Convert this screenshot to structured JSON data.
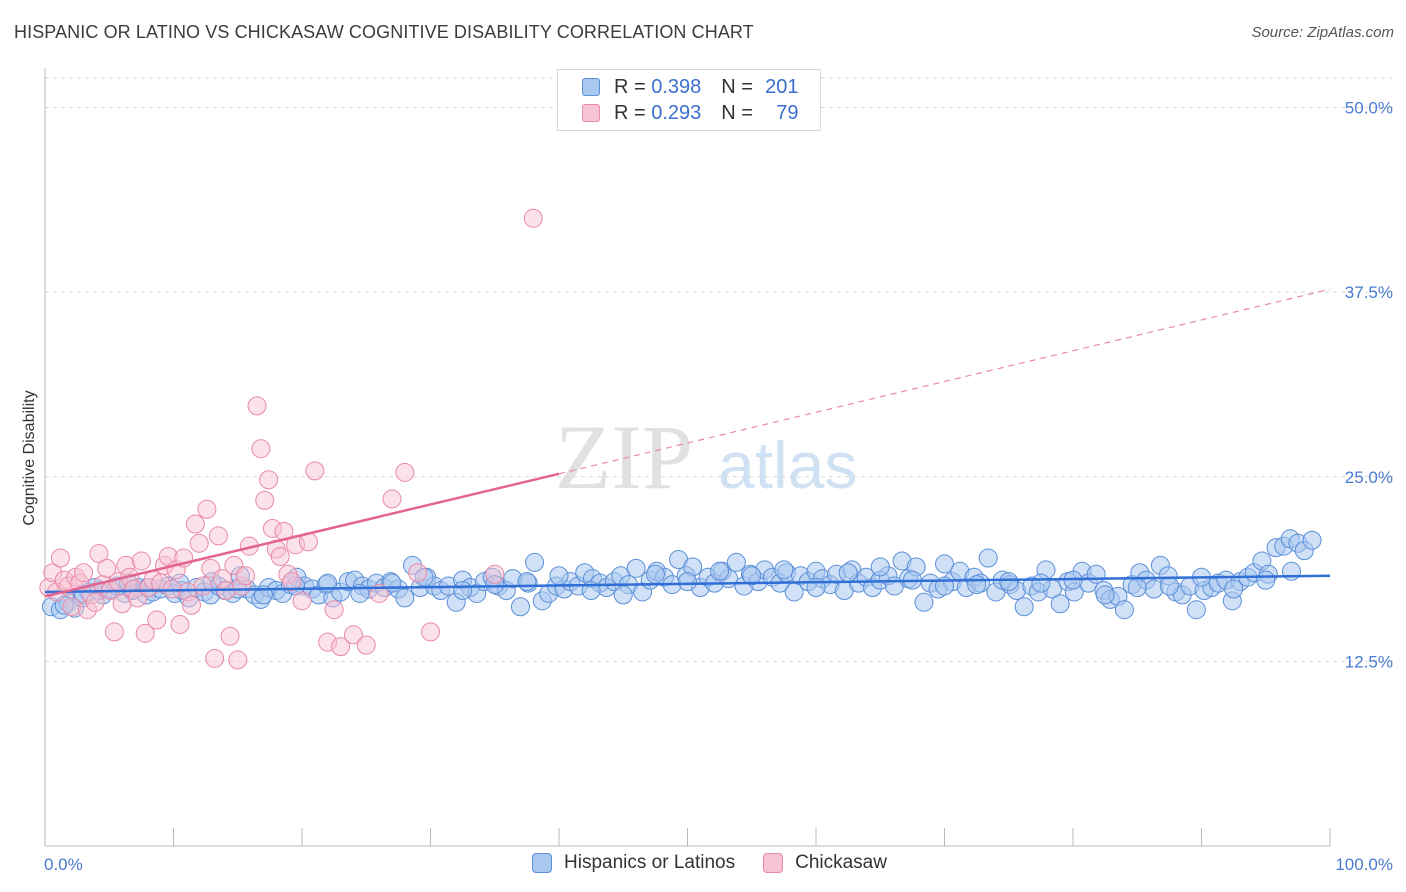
{
  "title": "HISPANIC OR LATINO VS CHICKASAW COGNITIVE DISABILITY CORRELATION CHART",
  "source": "Source: ZipAtlas.com",
  "legend": {
    "r_label": "R =",
    "n_label": "N =",
    "series": [
      {
        "name": "Hispanics or Latinos",
        "r": "0.398",
        "n": "201"
      },
      {
        "name": "Chickasaw",
        "r": "0.293",
        "n": "79"
      }
    ]
  },
  "watermark": {
    "zip": "ZIP",
    "atlas": "atlas"
  },
  "colors": {
    "blue_fill": "#a9c8f0",
    "blue_stroke": "#5b8fd8",
    "blue_line": "#2f6fd6",
    "pink_fill": "#f7c4d4",
    "pink_stroke": "#e98aa8",
    "pink_line": "#e36491",
    "grid": "#d8d8d8",
    "label_blue": "#4a7bd0"
  },
  "chart_data": {
    "type": "scatter",
    "title": "HISPANIC OR LATINO VS CHICKASAW COGNITIVE DISABILITY CORRELATION CHART",
    "xlabel": "",
    "ylabel": "Cognitive Disability",
    "xlim": [
      0,
      100
    ],
    "ylim": [
      0,
      52
    ],
    "x_tick_labels": [
      "0.0%",
      "100.0%"
    ],
    "y_ticks": [
      12.5,
      25.0,
      37.5,
      50.0
    ],
    "y_tick_labels": [
      "12.5%",
      "25.0%",
      "37.5%",
      "50.0%"
    ],
    "series": [
      {
        "name": "Hispanics or Latinos",
        "r": 0.398,
        "n": 201,
        "trend": {
          "x0": 0,
          "y0": 17.2,
          "x1": 100,
          "y1": 18.3,
          "style": "solid"
        },
        "points": [
          [
            0.5,
            16.2
          ],
          [
            1.2,
            16.0
          ],
          [
            1.8,
            16.5
          ],
          [
            2.3,
            16.1
          ],
          [
            2.9,
            16.8
          ],
          [
            3.4,
            17.2
          ],
          [
            3.9,
            17.5
          ],
          [
            4.5,
            17.0
          ],
          [
            5.1,
            17.4
          ],
          [
            5.6,
            17.6
          ],
          [
            6.2,
            17.1
          ],
          [
            6.8,
            17.3
          ],
          [
            7.3,
            17.5
          ],
          [
            7.9,
            17.0
          ],
          [
            8.4,
            17.2
          ],
          [
            9.0,
            17.4
          ],
          [
            9.6,
            17.6
          ],
          [
            10.1,
            17.1
          ],
          [
            10.7,
            17.3
          ],
          [
            11.2,
            16.8
          ],
          [
            11.8,
            17.5
          ],
          [
            12.4,
            17.2
          ],
          [
            12.9,
            17.0
          ],
          [
            13.5,
            17.6
          ],
          [
            14.0,
            17.3
          ],
          [
            14.6,
            17.1
          ],
          [
            15.2,
            18.3
          ],
          [
            15.7,
            17.4
          ],
          [
            16.3,
            17.0
          ],
          [
            16.8,
            16.7
          ],
          [
            17.4,
            17.5
          ],
          [
            18.0,
            17.3
          ],
          [
            18.5,
            17.1
          ],
          [
            19.1,
            17.7
          ],
          [
            19.6,
            18.2
          ],
          [
            20.2,
            17.6
          ],
          [
            20.8,
            17.4
          ],
          [
            21.3,
            17.0
          ],
          [
            21.9,
            17.7
          ],
          [
            22.4,
            16.8
          ],
          [
            23.0,
            17.2
          ],
          [
            23.6,
            17.9
          ],
          [
            24.1,
            18.0
          ],
          [
            24.7,
            17.6
          ],
          [
            25.2,
            17.4
          ],
          [
            25.8,
            17.8
          ],
          [
            26.4,
            17.5
          ],
          [
            26.9,
            17.9
          ],
          [
            27.5,
            17.4
          ],
          [
            28.0,
            16.8
          ],
          [
            28.6,
            19.0
          ],
          [
            29.2,
            17.5
          ],
          [
            29.7,
            18.2
          ],
          [
            30.3,
            17.6
          ],
          [
            30.8,
            17.3
          ],
          [
            31.4,
            17.6
          ],
          [
            32.0,
            16.5
          ],
          [
            32.5,
            18.0
          ],
          [
            33.1,
            17.5
          ],
          [
            33.6,
            17.1
          ],
          [
            34.2,
            17.9
          ],
          [
            34.8,
            18.2
          ],
          [
            35.3,
            17.6
          ],
          [
            35.9,
            17.3
          ],
          [
            36.4,
            18.1
          ],
          [
            37.0,
            16.2
          ],
          [
            37.6,
            17.8
          ],
          [
            38.1,
            19.2
          ],
          [
            38.7,
            16.6
          ],
          [
            39.2,
            17.1
          ],
          [
            39.8,
            17.6
          ],
          [
            40.4,
            17.4
          ],
          [
            40.9,
            17.9
          ],
          [
            41.5,
            17.6
          ],
          [
            42.0,
            18.5
          ],
          [
            42.6,
            18.1
          ],
          [
            43.2,
            17.8
          ],
          [
            43.7,
            17.5
          ],
          [
            44.3,
            17.9
          ],
          [
            44.8,
            18.3
          ],
          [
            45.4,
            17.7
          ],
          [
            46.0,
            18.8
          ],
          [
            46.5,
            17.2
          ],
          [
            47.1,
            18.0
          ],
          [
            47.6,
            18.6
          ],
          [
            48.2,
            18.2
          ],
          [
            48.8,
            17.7
          ],
          [
            49.3,
            19.4
          ],
          [
            49.9,
            18.3
          ],
          [
            50.4,
            18.9
          ],
          [
            51.0,
            17.5
          ],
          [
            51.6,
            18.2
          ],
          [
            52.1,
            17.8
          ],
          [
            52.7,
            18.6
          ],
          [
            53.2,
            18.1
          ],
          [
            53.8,
            19.2
          ],
          [
            54.4,
            17.6
          ],
          [
            54.9,
            18.4
          ],
          [
            55.5,
            17.9
          ],
          [
            56.0,
            18.7
          ],
          [
            56.6,
            18.2
          ],
          [
            57.2,
            17.8
          ],
          [
            57.7,
            18.5
          ],
          [
            58.3,
            17.2
          ],
          [
            58.8,
            18.3
          ],
          [
            59.4,
            17.9
          ],
          [
            60.0,
            18.6
          ],
          [
            60.5,
            18.1
          ],
          [
            61.1,
            17.7
          ],
          [
            61.6,
            18.4
          ],
          [
            62.2,
            17.3
          ],
          [
            62.8,
            18.7
          ],
          [
            63.3,
            17.8
          ],
          [
            63.9,
            18.2
          ],
          [
            64.4,
            17.5
          ],
          [
            65.0,
            18.0
          ],
          [
            65.6,
            18.3
          ],
          [
            66.1,
            17.6
          ],
          [
            66.7,
            19.3
          ],
          [
            67.2,
            18.1
          ],
          [
            67.8,
            18.9
          ],
          [
            68.4,
            16.5
          ],
          [
            68.9,
            17.8
          ],
          [
            69.5,
            17.4
          ],
          [
            70.0,
            19.1
          ],
          [
            70.6,
            17.9
          ],
          [
            71.2,
            18.6
          ],
          [
            71.7,
            17.5
          ],
          [
            72.3,
            18.2
          ],
          [
            72.8,
            17.8
          ],
          [
            73.4,
            19.5
          ],
          [
            74.0,
            17.2
          ],
          [
            74.5,
            18.0
          ],
          [
            75.1,
            17.7
          ],
          [
            75.6,
            17.3
          ],
          [
            76.2,
            16.2
          ],
          [
            76.8,
            17.6
          ],
          [
            77.3,
            17.2
          ],
          [
            77.9,
            18.7
          ],
          [
            78.4,
            17.4
          ],
          [
            79.0,
            16.4
          ],
          [
            79.6,
            17.9
          ],
          [
            80.1,
            17.2
          ],
          [
            80.7,
            18.6
          ],
          [
            81.2,
            17.8
          ],
          [
            81.8,
            18.4
          ],
          [
            82.4,
            17.3
          ],
          [
            82.9,
            16.7
          ],
          [
            83.5,
            16.9
          ],
          [
            84.0,
            16.0
          ],
          [
            84.6,
            17.7
          ],
          [
            85.2,
            18.5
          ],
          [
            85.7,
            18.0
          ],
          [
            86.3,
            17.4
          ],
          [
            86.8,
            19.0
          ],
          [
            87.4,
            18.3
          ],
          [
            88.0,
            17.2
          ],
          [
            88.5,
            17.0
          ],
          [
            89.1,
            17.6
          ],
          [
            89.6,
            16.0
          ],
          [
            90.2,
            17.3
          ],
          [
            90.8,
            17.5
          ],
          [
            91.3,
            17.8
          ],
          [
            91.9,
            18.0
          ],
          [
            92.4,
            16.6
          ],
          [
            93.0,
            17.9
          ],
          [
            93.6,
            18.2
          ],
          [
            94.1,
            18.5
          ],
          [
            94.7,
            19.3
          ],
          [
            95.2,
            18.4
          ],
          [
            95.8,
            20.2
          ],
          [
            96.4,
            20.3
          ],
          [
            96.9,
            20.8
          ],
          [
            97.5,
            20.5
          ],
          [
            98.0,
            20.0
          ],
          [
            98.6,
            20.7
          ],
          [
            1.5,
            16.3
          ],
          [
            3.0,
            17.0
          ],
          [
            4.2,
            17.3
          ],
          [
            6.5,
            17.8
          ],
          [
            8.0,
            17.5
          ],
          [
            10.5,
            17.8
          ],
          [
            13.0,
            17.9
          ],
          [
            15.0,
            17.4
          ],
          [
            17.0,
            17.0
          ],
          [
            19.5,
            17.6
          ],
          [
            22.0,
            17.8
          ],
          [
            24.5,
            17.1
          ],
          [
            27.0,
            17.8
          ],
          [
            29.5,
            18.2
          ],
          [
            32.5,
            17.3
          ],
          [
            35.0,
            17.7
          ],
          [
            37.5,
            17.9
          ],
          [
            40.0,
            18.3
          ],
          [
            42.5,
            17.3
          ],
          [
            45.0,
            17.0
          ],
          [
            47.5,
            18.4
          ],
          [
            50.0,
            17.9
          ],
          [
            52.5,
            18.6
          ],
          [
            55.0,
            18.3
          ],
          [
            57.5,
            18.7
          ],
          [
            60.0,
            17.5
          ],
          [
            62.5,
            18.5
          ],
          [
            65.0,
            18.9
          ],
          [
            67.5,
            18.0
          ],
          [
            70.0,
            17.6
          ],
          [
            72.5,
            17.7
          ],
          [
            75.0,
            17.9
          ],
          [
            77.5,
            17.8
          ],
          [
            80.0,
            18.0
          ],
          [
            82.5,
            17.0
          ],
          [
            85.0,
            17.5
          ],
          [
            87.5,
            17.6
          ],
          [
            90.0,
            18.2
          ],
          [
            92.5,
            17.4
          ],
          [
            95.0,
            18.0
          ],
          [
            97.0,
            18.6
          ]
        ]
      },
      {
        "name": "Chickasaw",
        "r": 0.293,
        "n": 79,
        "trend": {
          "x0": 0,
          "y0": 16.9,
          "x1": 40,
          "y1": 25.2,
          "style": "solid",
          "ext_x1": 100,
          "ext_y1": 37.7,
          "ext_style": "dashed"
        },
        "points": [
          [
            0.3,
            17.5
          ],
          [
            0.6,
            18.5
          ],
          [
            0.9,
            17.2
          ],
          [
            1.2,
            19.5
          ],
          [
            1.5,
            18.0
          ],
          [
            1.8,
            17.6
          ],
          [
            2.1,
            16.2
          ],
          [
            2.4,
            18.2
          ],
          [
            2.7,
            17.8
          ],
          [
            3.0,
            18.5
          ],
          [
            3.3,
            16.0
          ],
          [
            3.6,
            17.0
          ],
          [
            3.9,
            16.5
          ],
          [
            4.2,
            19.8
          ],
          [
            4.5,
            17.7
          ],
          [
            4.8,
            18.8
          ],
          [
            5.1,
            17.3
          ],
          [
            5.4,
            14.5
          ],
          [
            5.7,
            17.9
          ],
          [
            6.0,
            16.4
          ],
          [
            6.3,
            19.0
          ],
          [
            6.6,
            18.2
          ],
          [
            6.9,
            17.4
          ],
          [
            7.2,
            16.8
          ],
          [
            7.5,
            19.3
          ],
          [
            7.8,
            14.4
          ],
          [
            8.1,
            17.5
          ],
          [
            8.4,
            18.0
          ],
          [
            8.7,
            15.3
          ],
          [
            9.0,
            17.8
          ],
          [
            9.3,
            19.0
          ],
          [
            9.6,
            19.6
          ],
          [
            9.9,
            17.4
          ],
          [
            10.2,
            18.7
          ],
          [
            10.5,
            15.0
          ],
          [
            10.8,
            19.5
          ],
          [
            11.1,
            17.2
          ],
          [
            11.4,
            16.3
          ],
          [
            11.7,
            21.8
          ],
          [
            12.0,
            20.5
          ],
          [
            12.3,
            17.6
          ],
          [
            12.6,
            22.8
          ],
          [
            12.9,
            18.8
          ],
          [
            13.2,
            12.7
          ],
          [
            13.5,
            21.0
          ],
          [
            13.8,
            18.1
          ],
          [
            14.1,
            17.3
          ],
          [
            14.4,
            14.2
          ],
          [
            14.7,
            19.0
          ],
          [
            15.0,
            12.6
          ],
          [
            15.3,
            17.6
          ],
          [
            15.6,
            18.3
          ],
          [
            15.9,
            20.3
          ],
          [
            16.5,
            29.8
          ],
          [
            16.8,
            26.9
          ],
          [
            17.1,
            23.4
          ],
          [
            17.4,
            24.8
          ],
          [
            17.7,
            21.5
          ],
          [
            18.0,
            20.1
          ],
          [
            18.3,
            19.6
          ],
          [
            18.6,
            21.3
          ],
          [
            18.9,
            18.4
          ],
          [
            19.2,
            17.9
          ],
          [
            19.5,
            20.4
          ],
          [
            20.0,
            16.6
          ],
          [
            20.5,
            20.6
          ],
          [
            21.0,
            25.4
          ],
          [
            22.0,
            13.8
          ],
          [
            22.5,
            16.0
          ],
          [
            23.0,
            13.5
          ],
          [
            24.0,
            14.3
          ],
          [
            25.0,
            13.6
          ],
          [
            26.0,
            17.1
          ],
          [
            27.0,
            23.5
          ],
          [
            28.0,
            25.3
          ],
          [
            29.0,
            18.5
          ],
          [
            30.0,
            14.5
          ],
          [
            35.0,
            18.4
          ],
          [
            38.0,
            42.5
          ]
        ]
      }
    ]
  }
}
